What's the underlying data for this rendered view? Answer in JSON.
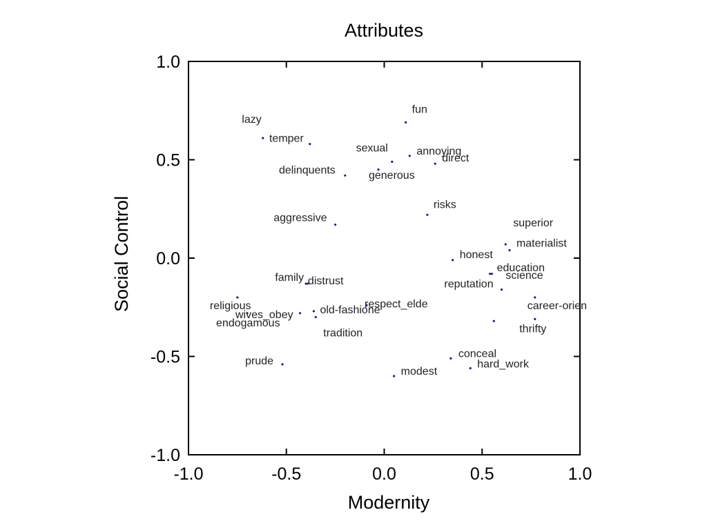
{
  "chart_data": {
    "type": "scatter",
    "title": "Attributes",
    "xlabel": "Modernity",
    "ylabel": "Social Control",
    "xlim": [
      -1.0,
      1.0
    ],
    "ylim": [
      -1.0,
      1.0
    ],
    "xticks": [
      "-1.0",
      "-0.5",
      "0.0",
      "0.5",
      "1.0"
    ],
    "yticks": [
      "1.0",
      "0.5",
      "0.0",
      "-0.5",
      "-1.0"
    ],
    "grid": false,
    "marker_color": "#1a1aa0",
    "points": [
      {
        "label": "fun",
        "x": 0.11,
        "y": 0.69
      },
      {
        "label": "lazy",
        "x": -0.62,
        "y": 0.61
      },
      {
        "label": "temper",
        "x": -0.38,
        "y": 0.58
      },
      {
        "label": "sexual",
        "x": 0.04,
        "y": 0.49
      },
      {
        "label": "annoying",
        "x": 0.13,
        "y": 0.52
      },
      {
        "label": "direct",
        "x": 0.26,
        "y": 0.48
      },
      {
        "label": "delinquents",
        "x": -0.2,
        "y": 0.42
      },
      {
        "label": "generous",
        "x": -0.03,
        "y": 0.45
      },
      {
        "label": "risks",
        "x": 0.22,
        "y": 0.22
      },
      {
        "label": "aggressive",
        "x": -0.25,
        "y": 0.17
      },
      {
        "label": "superior",
        "x": 0.62,
        "y": 0.07
      },
      {
        "label": "materialist",
        "x": 0.64,
        "y": 0.04
      },
      {
        "label": "honest",
        "x": 0.35,
        "y": -0.01
      },
      {
        "label": "education",
        "x": 0.54,
        "y": -0.08
      },
      {
        "label": "science",
        "x": 0.55,
        "y": -0.08
      },
      {
        "label": "reputation",
        "x": 0.6,
        "y": -0.16
      },
      {
        "label": "career-orien",
        "x": 0.77,
        "y": -0.2
      },
      {
        "label": "thrifty",
        "x": 0.77,
        "y": -0.31
      },
      {
        "label": "family",
        "x": -0.4,
        "y": -0.13
      },
      {
        "label": "distrust",
        "x": -0.39,
        "y": -0.13
      },
      {
        "label": "respect_elde",
        "x": -0.09,
        "y": -0.24
      },
      {
        "label": "old-fashione",
        "x": -0.36,
        "y": -0.27
      },
      {
        "label": "religious",
        "x": -0.75,
        "y": -0.2
      },
      {
        "label": "wives_obey",
        "x": -0.43,
        "y": -0.28
      },
      {
        "label": "endogamous",
        "x": -0.7,
        "y": -0.28
      },
      {
        "label": "tradition",
        "x": -0.35,
        "y": -0.3
      },
      {
        "label": "",
        "x": 0.56,
        "y": -0.32
      },
      {
        "label": "prude",
        "x": -0.52,
        "y": -0.54
      },
      {
        "label": "conceal",
        "x": 0.34,
        "y": -0.51
      },
      {
        "label": "hard_work",
        "x": 0.44,
        "y": -0.56
      },
      {
        "label": "modest",
        "x": 0.05,
        "y": -0.6
      }
    ]
  }
}
